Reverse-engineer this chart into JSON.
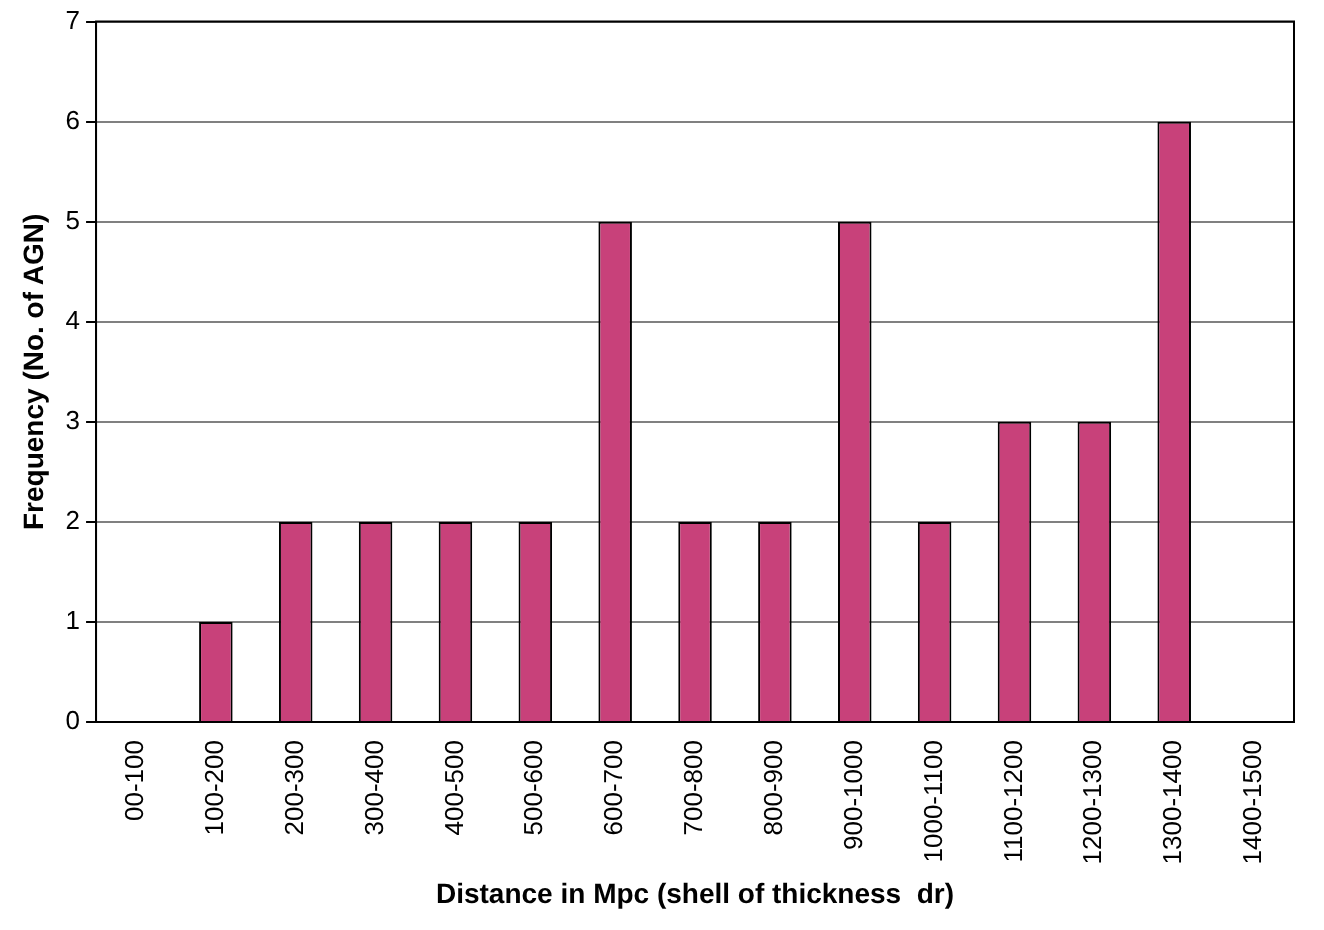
{
  "chart_data": {
    "type": "bar",
    "xlabel": "Distance in Mpc (shell of thickness  dr)",
    "ylabel": "Frequency (No. of AGN)",
    "categories": [
      "00-100",
      "100-200",
      "200-300",
      "300-400",
      "400-500",
      "500-600",
      "600-700",
      "700-800",
      "800-900",
      "900-1000",
      "1000-1100",
      "1100-1200",
      "1200-1300",
      "1300-1400",
      "1400-1500"
    ],
    "values": [
      0,
      1,
      2,
      2,
      2,
      2,
      5,
      2,
      2,
      5,
      2,
      3,
      3,
      6,
      0
    ],
    "color": "#c8417a",
    "ylim": [
      0,
      7
    ],
    "yticks": [
      0,
      1,
      2,
      3,
      4,
      5,
      6,
      7
    ],
    "grid": "y",
    "legend": false
  }
}
